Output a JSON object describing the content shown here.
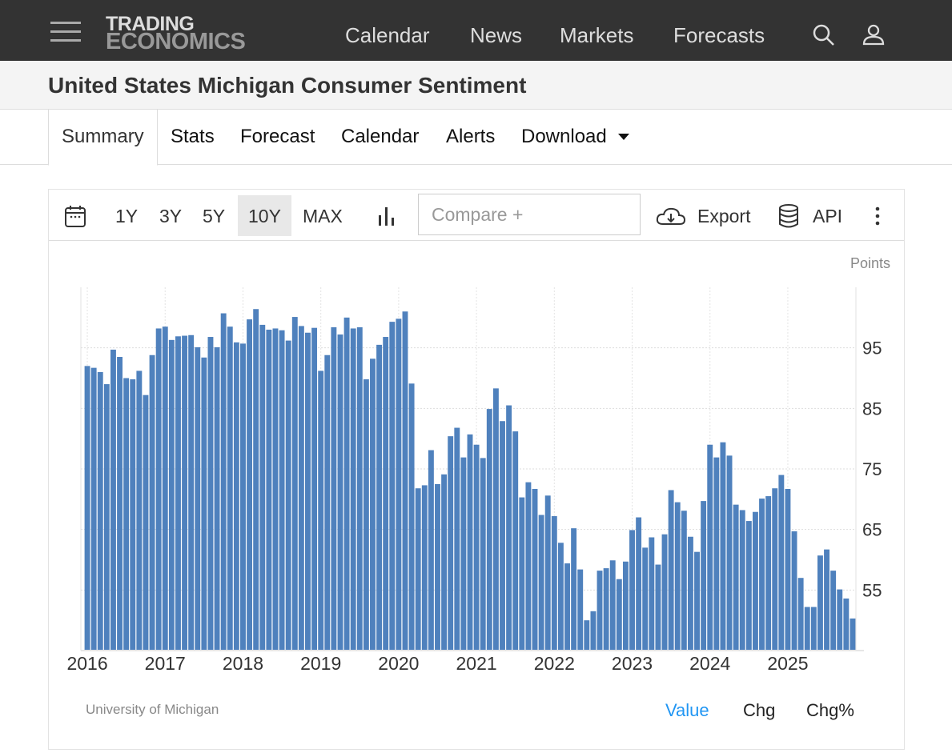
{
  "header": {
    "logo_line1": "TRADING",
    "logo_line2": "ECONOMICS",
    "nav": [
      "Calendar",
      "News",
      "Markets",
      "Forecasts"
    ],
    "icons": [
      "menu-icon",
      "search-icon",
      "user-icon"
    ]
  },
  "page": {
    "title": "United States Michigan Consumer Sentiment"
  },
  "tabs": [
    "Summary",
    "Stats",
    "Forecast",
    "Calendar",
    "Alerts",
    "Download"
  ],
  "toolbar": {
    "ranges": [
      "1Y",
      "3Y",
      "5Y",
      "10Y",
      "MAX"
    ],
    "selected_range": "10Y",
    "compare_placeholder": "Compare +",
    "export": "Export",
    "api": "API"
  },
  "footer": {
    "source": "University of Michigan",
    "modes": [
      "Value",
      "Chg",
      "Chg%"
    ],
    "selected_mode": "Value"
  },
  "colors": {
    "bar": "#4f81bd",
    "accent": "#2196f3"
  },
  "chart_data": {
    "type": "bar",
    "unit": "Points",
    "x_tick_labels": [
      "2016",
      "2017",
      "2018",
      "2019",
      "2020",
      "2021",
      "2022",
      "2023",
      "2024",
      "2025"
    ],
    "y_tick_labels": [
      "55",
      "65",
      "75",
      "85",
      "95"
    ],
    "ylim": [
      45,
      105
    ],
    "grid": true,
    "start": "2016-01",
    "frequency": "monthly",
    "values": [
      92.0,
      91.7,
      91.0,
      89.0,
      94.7,
      93.5,
      90.0,
      89.8,
      91.2,
      87.2,
      93.8,
      98.2,
      98.5,
      96.3,
      96.9,
      97.0,
      97.1,
      95.1,
      93.4,
      96.8,
      95.1,
      100.7,
      98.5,
      95.9,
      95.7,
      99.7,
      101.4,
      98.8,
      98.0,
      98.2,
      97.9,
      96.2,
      100.1,
      98.6,
      97.5,
      98.3,
      91.2,
      93.8,
      98.4,
      97.2,
      100.0,
      98.2,
      98.4,
      89.8,
      93.2,
      95.5,
      96.8,
      99.3,
      99.8,
      101.0,
      89.1,
      71.8,
      72.3,
      78.1,
      72.5,
      74.1,
      80.4,
      81.8,
      76.9,
      80.7,
      79.0,
      76.8,
      84.9,
      88.3,
      82.9,
      85.5,
      81.2,
      70.3,
      72.8,
      71.7,
      67.4,
      70.6,
      67.2,
      62.8,
      59.4,
      65.2,
      58.4,
      50.0,
      51.5,
      58.2,
      58.6,
      59.9,
      56.8,
      59.7,
      64.9,
      67.0,
      62.0,
      63.7,
      59.2,
      64.2,
      71.5,
      69.5,
      68.1,
      63.8,
      61.3,
      69.7,
      79.0,
      76.9,
      79.4,
      77.2,
      69.1,
      68.2,
      66.4,
      67.9,
      70.1,
      70.5,
      71.8,
      74.0,
      71.7,
      64.7,
      57.0,
      52.2,
      52.2,
      60.7,
      61.7,
      58.2,
      55.1,
      53.6,
      50.3
    ]
  }
}
